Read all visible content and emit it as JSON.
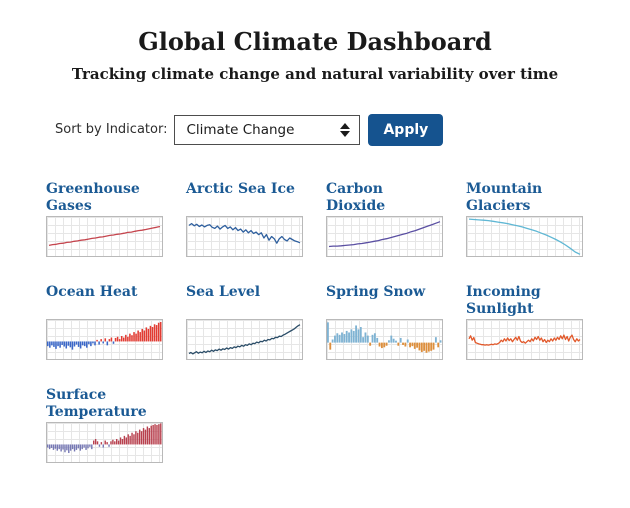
{
  "header": {
    "title": "Global Climate Dashboard",
    "subtitle": "Tracking climate change and natural variability over time"
  },
  "controls": {
    "sort_label": "Sort by Indicator:",
    "sort_value": "Climate Change",
    "apply_label": "Apply"
  },
  "colors": {
    "title_blue": "#1b5a94",
    "button_blue": "#15538f",
    "chart_border": "#b9b9b9",
    "gridline": "#e6e6e6"
  },
  "chart_data": [
    {
      "title": "Greenhouse Gases",
      "type": "line",
      "color": "#c5454e",
      "values": [
        0.26,
        0.28,
        0.29,
        0.31,
        0.32,
        0.34,
        0.35,
        0.37,
        0.38,
        0.4,
        0.41,
        0.43,
        0.45,
        0.46,
        0.48,
        0.49,
        0.51,
        0.53,
        0.54,
        0.56,
        0.57,
        0.59,
        0.61,
        0.62,
        0.64,
        0.66,
        0.67,
        0.69,
        0.71,
        0.73,
        0.75,
        0.77
      ]
    },
    {
      "title": "Arctic Sea Ice",
      "type": "line",
      "color": "#2e5f9e",
      "values": [
        0.8,
        0.85,
        0.79,
        0.83,
        0.77,
        0.81,
        0.76,
        0.8,
        0.82,
        0.75,
        0.72,
        0.78,
        0.7,
        0.76,
        0.8,
        0.72,
        0.76,
        0.68,
        0.74,
        0.66,
        0.7,
        0.62,
        0.68,
        0.6,
        0.66,
        0.58,
        0.62,
        0.55,
        0.6,
        0.46,
        0.55,
        0.4,
        0.5,
        0.44,
        0.32,
        0.44,
        0.5,
        0.42,
        0.38,
        0.46,
        0.42,
        0.38,
        0.36,
        0.33
      ]
    },
    {
      "title": "Carbon Dioxide",
      "type": "line",
      "color": "#5a4fa2",
      "values": [
        0.23,
        0.24,
        0.24,
        0.25,
        0.26,
        0.27,
        0.28,
        0.3,
        0.31,
        0.33,
        0.35,
        0.37,
        0.39,
        0.42,
        0.44,
        0.47,
        0.5,
        0.53,
        0.56,
        0.59,
        0.63,
        0.66,
        0.7,
        0.74,
        0.78,
        0.82,
        0.86,
        0.9
      ]
    },
    {
      "title": "Mountain Glaciers",
      "type": "line",
      "color": "#5fb7d4",
      "values": [
        0.97,
        0.96,
        0.95,
        0.94,
        0.93,
        0.91,
        0.89,
        0.87,
        0.85,
        0.82,
        0.79,
        0.76,
        0.72,
        0.68,
        0.64,
        0.59,
        0.54,
        0.48,
        0.42,
        0.35,
        0.27,
        0.18,
        0.08,
        0.02
      ]
    },
    {
      "title": "Ocean Heat",
      "type": "bar",
      "pos_color": "#e23b32",
      "neg_color": "#3a67c8",
      "baseline": 0.45,
      "values": [
        -0.12,
        -0.16,
        -0.1,
        -0.14,
        -0.19,
        -0.12,
        -0.16,
        -0.09,
        -0.13,
        -0.18,
        -0.11,
        -0.15,
        -0.21,
        -0.13,
        -0.08,
        -0.14,
        -0.18,
        -0.1,
        -0.12,
        -0.16,
        -0.07,
        -0.12,
        -0.05,
        -0.1,
        0.04,
        -0.08,
        0.06,
        -0.05,
        0.08,
        -0.1,
        0.06,
        0.1,
        -0.06,
        0.09,
        0.12,
        0.06,
        0.14,
        0.1,
        0.17,
        0.12,
        0.2,
        0.16,
        0.24,
        0.2,
        0.28,
        0.24,
        0.32,
        0.28,
        0.36,
        0.32,
        0.4,
        0.37,
        0.44,
        0.42,
        0.48,
        0.5
      ]
    },
    {
      "title": "Sea Level",
      "type": "line",
      "color": "#2b4d68",
      "values": [
        0.12,
        0.15,
        0.11,
        0.14,
        0.17,
        0.13,
        0.16,
        0.14,
        0.18,
        0.15,
        0.19,
        0.17,
        0.21,
        0.18,
        0.22,
        0.2,
        0.24,
        0.21,
        0.25,
        0.23,
        0.27,
        0.24,
        0.28,
        0.26,
        0.3,
        0.28,
        0.32,
        0.3,
        0.34,
        0.32,
        0.36,
        0.34,
        0.38,
        0.36,
        0.4,
        0.39,
        0.43,
        0.41,
        0.45,
        0.44,
        0.48,
        0.46,
        0.5,
        0.49,
        0.53,
        0.52,
        0.56,
        0.55,
        0.59,
        0.58,
        0.62,
        0.64,
        0.67,
        0.7,
        0.73,
        0.76,
        0.79,
        0.83,
        0.87,
        0.9
      ]
    },
    {
      "title": "Spring Snow",
      "type": "bar",
      "pos_color": "#7fb3d3",
      "neg_color": "#dd8f3d",
      "baseline": 0.42,
      "values": [
        0.52,
        -0.18,
        0.08,
        0.18,
        0.24,
        0.2,
        0.26,
        0.22,
        0.3,
        0.26,
        0.34,
        0.3,
        0.44,
        0.34,
        0.4,
        0.14,
        0.26,
        0.18,
        -0.08,
        0.2,
        0.24,
        0.12,
        -0.1,
        -0.14,
        -0.12,
        -0.08,
        0.06,
        0.18,
        0.1,
        0.05,
        -0.08,
        0.12,
        -0.06,
        -0.1,
        0.08,
        -0.12,
        -0.09,
        -0.16,
        -0.13,
        -0.2,
        -0.24,
        -0.21,
        -0.26,
        -0.23,
        -0.21,
        -0.18,
        0.14,
        -0.12,
        0.06
      ]
    },
    {
      "title": "Incoming Sunlight",
      "type": "line",
      "color": "#e2582a",
      "values": [
        0.52,
        0.6,
        0.48,
        0.55,
        0.42,
        0.4,
        0.38,
        0.37,
        0.36,
        0.36,
        0.35,
        0.36,
        0.35,
        0.36,
        0.37,
        0.36,
        0.38,
        0.37,
        0.39,
        0.42,
        0.48,
        0.44,
        0.52,
        0.46,
        0.54,
        0.47,
        0.52,
        0.44,
        0.5,
        0.56,
        0.48,
        0.58,
        0.46,
        0.42,
        0.44,
        0.4,
        0.44,
        0.48,
        0.44,
        0.52,
        0.46,
        0.56,
        0.5,
        0.58,
        0.48,
        0.54,
        0.44,
        0.5,
        0.42,
        0.48,
        0.44,
        0.52,
        0.46,
        0.54,
        0.48,
        0.56,
        0.5,
        0.6,
        0.52,
        0.62,
        0.5,
        0.58,
        0.46,
        0.56,
        0.62,
        0.5,
        0.44,
        0.52,
        0.46,
        0.5
      ]
    },
    {
      "title": "Surface Temperature",
      "type": "bar",
      "pos_color": "#b8404e",
      "neg_color": "#7678b4",
      "baseline": 0.45,
      "values": [
        -0.08,
        -0.12,
        -0.09,
        -0.14,
        -0.11,
        -0.16,
        -0.12,
        -0.18,
        -0.13,
        -0.2,
        -0.15,
        -0.22,
        -0.16,
        -0.12,
        -0.18,
        -0.14,
        -0.1,
        -0.16,
        -0.12,
        -0.08,
        -0.14,
        -0.1,
        -0.06,
        -0.12,
        0.1,
        0.14,
        0.08,
        -0.06,
        0.06,
        -0.08,
        0.1,
        0.06,
        -0.06,
        0.08,
        0.12,
        0.08,
        0.14,
        0.1,
        0.18,
        0.14,
        0.22,
        0.18,
        0.26,
        0.22,
        0.3,
        0.26,
        0.34,
        0.3,
        0.38,
        0.34,
        0.42,
        0.38,
        0.46,
        0.42,
        0.48,
        0.5,
        0.52,
        0.5,
        0.52,
        0.54
      ]
    }
  ]
}
